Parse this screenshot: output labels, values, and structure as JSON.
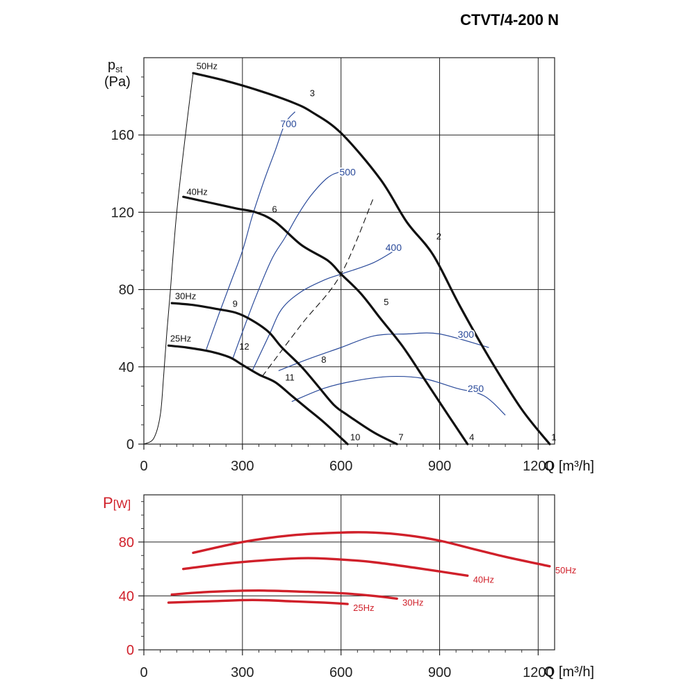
{
  "title": "CTVT/4-200 N",
  "chart_data": [
    {
      "type": "line",
      "ylabel_main": "p",
      "ylabel_sub": "st",
      "ylabel_unit": "(Pa)",
      "xlabel": "Q [m³/h]",
      "xlim": [
        0,
        1250
      ],
      "ylim": [
        0,
        200
      ],
      "x_ticks": [
        0,
        300,
        600,
        900,
        1200
      ],
      "y_ticks": [
        0,
        40,
        80,
        120,
        160
      ],
      "grid": true,
      "system_curve": {
        "name": "",
        "points": [
          [
            0,
            0
          ],
          [
            30,
            3
          ],
          [
            50,
            15
          ],
          [
            60,
            35
          ],
          [
            70,
            58
          ],
          [
            80,
            78
          ],
          [
            100,
            120
          ],
          [
            130,
            165
          ],
          [
            150,
            192
          ]
        ]
      },
      "fan_curves": [
        {
          "name": "50Hz",
          "points": [
            [
              150,
              192
            ],
            [
              250,
              188
            ],
            [
              350,
              183
            ],
            [
              450,
              177
            ],
            [
              510,
              172
            ],
            [
              600,
              161
            ],
            [
              720,
              137
            ],
            [
              800,
              115
            ],
            [
              880,
              98
            ],
            [
              960,
              72
            ],
            [
              1050,
              45
            ],
            [
              1150,
              18
            ],
            [
              1235,
              0
            ]
          ]
        },
        {
          "name": "40Hz",
          "points": [
            [
              120,
              128
            ],
            [
              200,
              125
            ],
            [
              280,
              122
            ],
            [
              340,
              120
            ],
            [
              400,
              115
            ],
            [
              480,
              103
            ],
            [
              560,
              95
            ],
            [
              600,
              88
            ],
            [
              660,
              78
            ],
            [
              720,
              65
            ],
            [
              790,
              50
            ],
            [
              860,
              32
            ],
            [
              930,
              14
            ],
            [
              985,
              0
            ]
          ]
        },
        {
          "name": "30Hz",
          "points": [
            [
              85,
              73
            ],
            [
              150,
              72
            ],
            [
              220,
              70
            ],
            [
              280,
              68
            ],
            [
              330,
              64
            ],
            [
              380,
              58
            ],
            [
              420,
              50
            ],
            [
              480,
              40
            ],
            [
              530,
              30
            ],
            [
              580,
              20
            ],
            [
              620,
              15
            ],
            [
              700,
              6
            ],
            [
              770,
              0
            ]
          ]
        },
        {
          "name": "25Hz",
          "points": [
            [
              75,
              51
            ],
            [
              130,
              50
            ],
            [
              200,
              48
            ],
            [
              260,
              45
            ],
            [
              300,
              41
            ],
            [
              350,
              36
            ],
            [
              400,
              32
            ],
            [
              450,
              25
            ],
            [
              500,
              18
            ],
            [
              550,
              11
            ],
            [
              620,
              0
            ]
          ]
        }
      ],
      "blue_curves": [
        {
          "name": "700",
          "points": [
            [
              190,
              49
            ],
            [
              230,
              68
            ],
            [
              265,
              84
            ],
            [
              300,
              100
            ],
            [
              330,
              118
            ],
            [
              365,
              136
            ],
            [
              400,
              152
            ],
            [
              430,
              166
            ],
            [
              460,
              172
            ]
          ]
        },
        {
          "name": "500",
          "points": [
            [
              270,
              44
            ],
            [
              300,
              58
            ],
            [
              340,
              76
            ],
            [
              390,
              96
            ],
            [
              430,
              107
            ],
            [
              470,
              119
            ],
            [
              510,
              129
            ],
            [
              560,
              138
            ],
            [
              600,
              141
            ],
            [
              640,
              142
            ]
          ]
        },
        {
          "name": "400",
          "points": [
            [
              330,
              38
            ],
            [
              380,
              56
            ],
            [
              420,
              70
            ],
            [
              480,
              79
            ],
            [
              550,
              85
            ],
            [
              600,
              88
            ],
            [
              700,
              94
            ],
            [
              780,
              102
            ]
          ]
        },
        {
          "name": "300",
          "points": [
            [
              410,
              38
            ],
            [
              500,
              44
            ],
            [
              600,
              50
            ],
            [
              700,
              56
            ],
            [
              800,
              57
            ],
            [
              900,
              57
            ],
            [
              1050,
              50
            ]
          ]
        },
        {
          "name": "250",
          "points": [
            [
              450,
              22
            ],
            [
              550,
              29
            ],
            [
              650,
              33
            ],
            [
              750,
              35
            ],
            [
              850,
              34
            ],
            [
              950,
              29
            ],
            [
              1035,
              25
            ],
            [
              1100,
              15
            ]
          ]
        }
      ],
      "dashed_line": [
        [
          360,
          35
        ],
        [
          480,
          62
        ],
        [
          600,
          88
        ],
        [
          700,
          128
        ]
      ],
      "point_labels": [
        {
          "text": "1",
          "x": 1240,
          "y": 2
        },
        {
          "text": "2",
          "x": 890,
          "y": 106
        },
        {
          "text": "3",
          "x": 505,
          "y": 180
        },
        {
          "text": "4",
          "x": 990,
          "y": 2
        },
        {
          "text": "5",
          "x": 730,
          "y": 72
        },
        {
          "text": "6",
          "x": 390,
          "y": 120
        },
        {
          "text": "7",
          "x": 775,
          "y": 2
        },
        {
          "text": "8",
          "x": 540,
          "y": 42
        },
        {
          "text": "9",
          "x": 270,
          "y": 71
        },
        {
          "text": "10",
          "x": 628,
          "y": 2
        },
        {
          "text": "11",
          "x": 430,
          "y": 33
        },
        {
          "text": "12",
          "x": 290,
          "y": 49
        }
      ],
      "curve_labels": [
        {
          "text": "50Hz",
          "x": 160,
          "y": 194
        },
        {
          "text": "40Hz",
          "x": 130,
          "y": 129
        },
        {
          "text": "30Hz",
          "x": 95,
          "y": 75
        },
        {
          "text": "25Hz",
          "x": 80,
          "y": 53
        },
        {
          "text": "700",
          "x": 440,
          "y": 164
        },
        {
          "text": "500",
          "x": 620,
          "y": 139
        },
        {
          "text": "400",
          "x": 760,
          "y": 100
        },
        {
          "text": "300",
          "x": 980,
          "y": 55
        },
        {
          "text": "250",
          "x": 1010,
          "y": 27
        }
      ]
    },
    {
      "type": "line",
      "ylabel_main": "P",
      "ylabel_unit": "[W]",
      "xlabel": "Q [m³/h]",
      "xlim": [
        0,
        1250
      ],
      "ylim": [
        0,
        115
      ],
      "x_ticks": [
        0,
        300,
        600,
        900,
        1200
      ],
      "y_ticks": [
        0,
        40,
        80
      ],
      "grid": true,
      "series": [
        {
          "name": "50Hz",
          "points": [
            [
              150,
              72
            ],
            [
              300,
              80
            ],
            [
              450,
              85
            ],
            [
              600,
              87
            ],
            [
              700,
              87
            ],
            [
              800,
              85
            ],
            [
              900,
              81
            ],
            [
              1000,
              75
            ],
            [
              1100,
              69
            ],
            [
              1235,
              62
            ]
          ]
        },
        {
          "name": "40Hz",
          "points": [
            [
              120,
              60
            ],
            [
              250,
              64
            ],
            [
              400,
              67
            ],
            [
              500,
              68
            ],
            [
              600,
              67
            ],
            [
              700,
              65
            ],
            [
              850,
              60
            ],
            [
              985,
              55
            ]
          ]
        },
        {
          "name": "30Hz",
          "points": [
            [
              85,
              41
            ],
            [
              200,
              43
            ],
            [
              350,
              44
            ],
            [
              500,
              43
            ],
            [
              600,
              42
            ],
            [
              700,
              40
            ],
            [
              770,
              38
            ]
          ]
        },
        {
          "name": "25Hz",
          "points": [
            [
              75,
              35
            ],
            [
              200,
              36
            ],
            [
              330,
              37
            ],
            [
              450,
              36
            ],
            [
              550,
              35
            ],
            [
              620,
              34
            ]
          ]
        }
      ]
    }
  ]
}
